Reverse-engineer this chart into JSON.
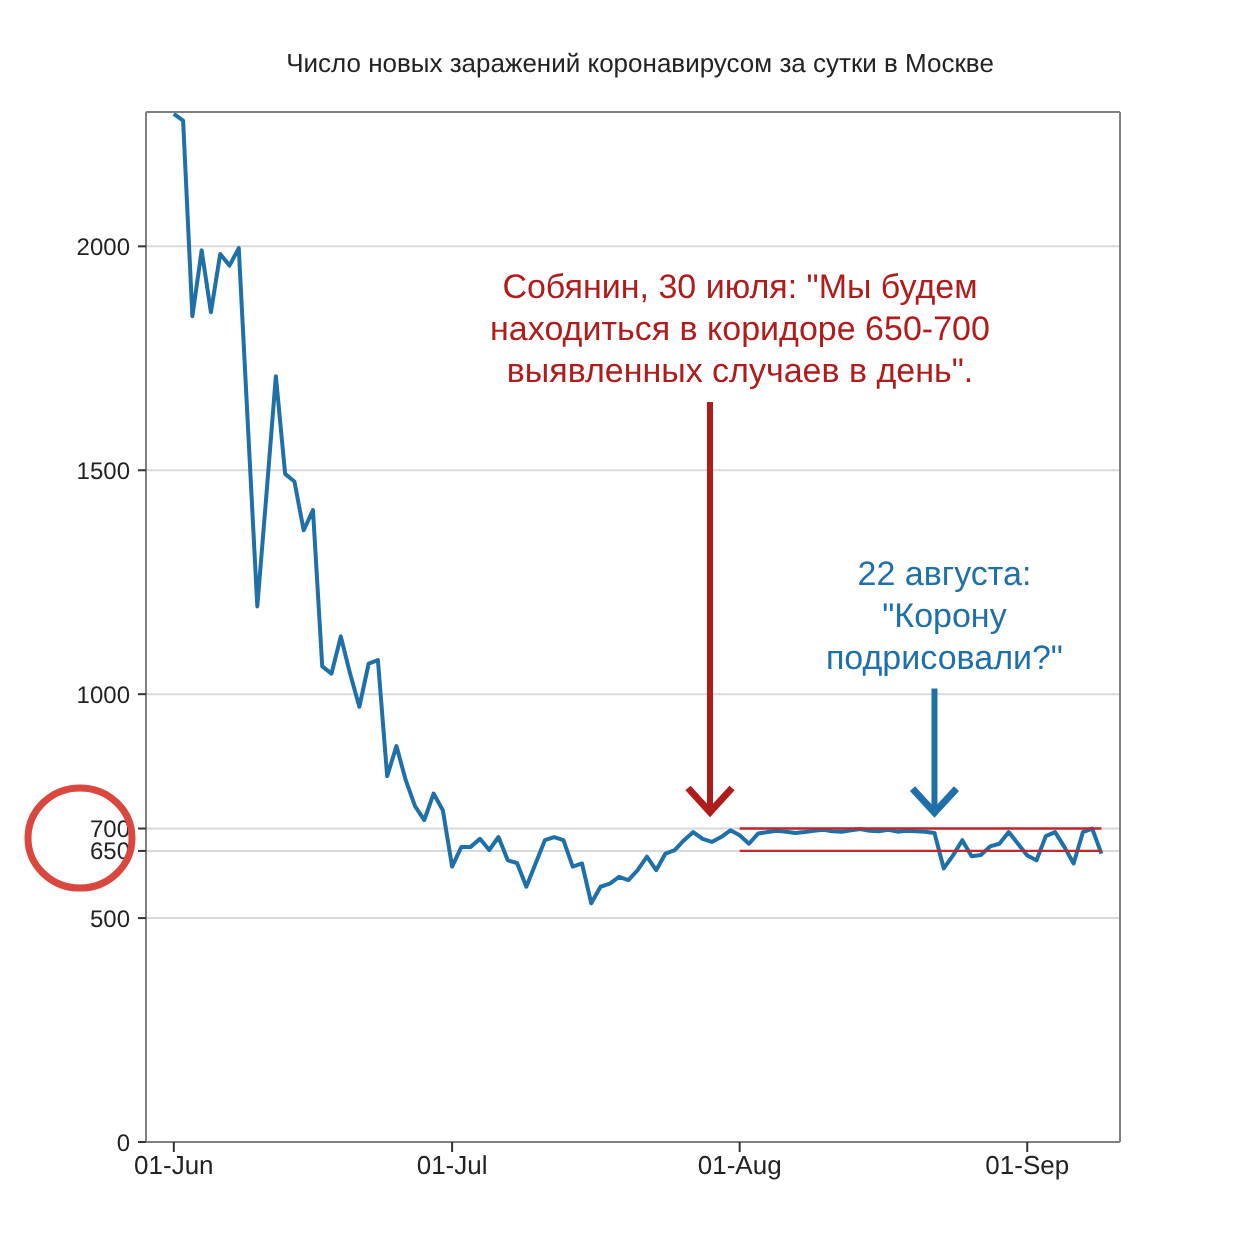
{
  "chart_data": {
    "type": "line",
    "title": "Число новых заражений коронавирусом за сутки в Москве",
    "x": [
      "--06-01",
      "--06-02",
      "--06-03",
      "--06-04",
      "--06-05",
      "--06-06",
      "--06-07",
      "--06-08",
      "--06-09",
      "--06-10",
      "--06-11",
      "--06-12",
      "--06-13",
      "--06-14",
      "--06-15",
      "--06-16",
      "--06-17",
      "--06-18",
      "--06-19",
      "--06-20",
      "--06-21",
      "--06-22",
      "--06-23",
      "--06-24",
      "--06-25",
      "--06-26",
      "--06-27",
      "--06-28",
      "--06-29",
      "--06-30",
      "--07-01",
      "--07-02",
      "--07-03",
      "--07-04",
      "--07-05",
      "--07-06",
      "--07-07",
      "--07-08",
      "--07-09",
      "--07-10",
      "--07-11",
      "--07-12",
      "--07-13",
      "--07-14",
      "--07-15",
      "--07-16",
      "--07-17",
      "--07-18",
      "--07-19",
      "--07-20",
      "--07-21",
      "--07-22",
      "--07-23",
      "--07-24",
      "--07-25",
      "--07-26",
      "--07-27",
      "--07-28",
      "--07-29",
      "--07-30",
      "--07-31",
      "--08-01",
      "--08-02",
      "--08-03",
      "--08-04",
      "--08-05",
      "--08-06",
      "--08-07",
      "--08-08",
      "--08-09",
      "--08-10",
      "--08-11",
      "--08-12",
      "--08-13",
      "--08-14",
      "--08-15",
      "--08-16",
      "--08-17",
      "--08-18",
      "--08-19",
      "--08-20",
      "--08-21",
      "--08-22",
      "--08-23",
      "--08-24",
      "--08-25",
      "--08-26",
      "--08-27",
      "--08-28",
      "--08-29",
      "--08-30",
      "--08-31",
      "--09-01",
      "--09-02",
      "--09-03",
      "--09-04",
      "--09-05",
      "--09-06",
      "--09-07",
      "--09-08",
      "--09-09"
    ],
    "series": [
      {
        "color": "#1f6fa8",
        "values": [
          2296,
          2281,
          1844,
          1991,
          1853,
          1983,
          1957,
          1996,
          1594,
          1196,
          1450,
          1710,
          1492,
          1475,
          1366,
          1411,
          1062,
          1046,
          1129,
          1046,
          972,
          1068,
          1076,
          817,
          884,
          808,
          750,
          719,
          778,
          741,
          615,
          659,
          659,
          677,
          652,
          681,
          629,
          623,
          570,
          622,
          674,
          681,
          674,
          615,
          622,
          533,
          570,
          577,
          592,
          585,
          607,
          637,
          607,
          644,
          652,
          674,
          692,
          677,
          670,
          681,
          696,
          685,
          666,
          689,
          692,
          695,
          693,
          690,
          692,
          695,
          697,
          694,
          693,
          696,
          699,
          695,
          694,
          697,
          693,
          695,
          694,
          693,
          690,
          611,
          640,
          674,
          638,
          641,
          660,
          666,
          692,
          666,
          640,
          629,
          683,
          692,
          659,
          622,
          692,
          700,
          644
        ]
      },
      {
        "type": "line",
        "color": "#c0282d",
        "x": [
          "--08-01",
          "--09-09"
        ],
        "values": [
          700,
          700
        ]
      },
      {
        "type": "line",
        "color": "#c0282d",
        "x": [
          "--08-01",
          "--09-09"
        ],
        "values": [
          650,
          650
        ]
      }
    ],
    "xlim": [
      "--05-29",
      "--09-11"
    ],
    "xticks": [
      {
        "value": "--06-01",
        "label": "01-Jun"
      },
      {
        "value": "--07-01",
        "label": "01-Jul"
      },
      {
        "value": "--08-01",
        "label": "01-Aug"
      },
      {
        "value": "--09-01",
        "label": "01-Sep"
      }
    ],
    "ylim": [
      0,
      2300
    ],
    "yticks": [
      0,
      500,
      650,
      700,
      1000,
      1500,
      2000
    ],
    "grid": "y",
    "marker": "none",
    "line_style": "solid",
    "annotations": [
      "Собянин, 30 июля: \"Мы будем находиться в коридоре 650-700 выявленных случаев в день\".",
      {
        "text": "22 августа: \"Корону подрисовали?\"",
        "x": "--08-22",
        "y": 700
      }
    ]
  }
}
